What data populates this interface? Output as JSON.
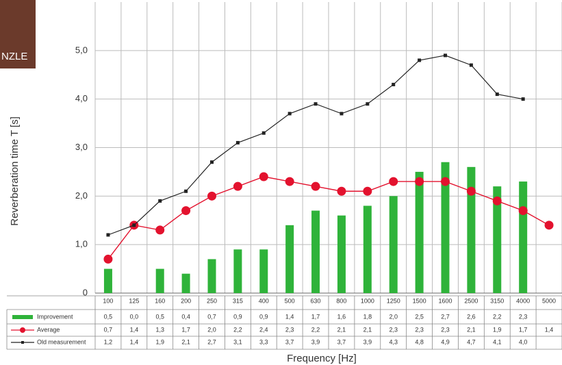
{
  "logo_text": "NZLE",
  "chart_data": {
    "type": "bar-line",
    "y_label": "Reverberation time T [s]",
    "x_label": "Frequency [Hz]",
    "categories": [
      "100",
      "125",
      "160",
      "200",
      "250",
      "315",
      "400",
      "500",
      "630",
      "800",
      "1000",
      "1250",
      "1500",
      "1600",
      "2500",
      "3150",
      "4000",
      "5000"
    ],
    "ylim": [
      0,
      6
    ],
    "yticks": [
      0,
      {
        "value": 1,
        "label": "1,0"
      },
      {
        "value": 2,
        "label": "2,0"
      },
      {
        "value": 3,
        "label": "3,0"
      },
      {
        "value": 4,
        "label": "4,0"
      },
      {
        "value": 5,
        "label": "5,0"
      }
    ],
    "grid": true,
    "series": [
      {
        "name": "Improvement",
        "kind": "bar",
        "color": "#2fb33a",
        "values": [
          0.5,
          0.0,
          0.5,
          0.4,
          0.7,
          0.9,
          0.9,
          1.4,
          1.7,
          1.6,
          1.8,
          2.0,
          2.5,
          2.7,
          2.6,
          2.2,
          2.3,
          null
        ],
        "value_labels": [
          "0,5",
          "0,0",
          "0,5",
          "0,4",
          "0,7",
          "0,9",
          "0,9",
          "1,4",
          "1,7",
          "1,6",
          "1,8",
          "2,0",
          "2,5",
          "2,7",
          "2,6",
          "2,2",
          "2,3",
          null
        ]
      },
      {
        "name": "Average",
        "kind": "line",
        "marker": "circle",
        "color": "#e3122e",
        "values": [
          0.7,
          1.4,
          1.3,
          1.7,
          2.0,
          2.2,
          2.4,
          2.3,
          2.2,
          2.1,
          2.1,
          2.3,
          2.3,
          2.3,
          2.1,
          1.9,
          1.7,
          1.4
        ],
        "value_labels": [
          "0,7",
          "1,4",
          "1,3",
          "1,7",
          "2,0",
          "2,2",
          "2,4",
          "2,3",
          "2,2",
          "2,1",
          "2,1",
          "2,3",
          "2,3",
          "2,3",
          "2,1",
          "1,9",
          "1,7",
          "1,4"
        ]
      },
      {
        "name": "Old measurement",
        "kind": "line",
        "marker": "square",
        "color": "#222222",
        "values": [
          1.2,
          1.4,
          1.9,
          2.1,
          2.7,
          3.1,
          3.3,
          3.7,
          3.9,
          3.7,
          3.9,
          4.3,
          4.8,
          4.9,
          4.7,
          4.1,
          4.0,
          null
        ],
        "value_labels": [
          "1,2",
          "1,4",
          "1,9",
          "2,1",
          "2,7",
          "3,1",
          "3,3",
          "3,7",
          "3,9",
          "3,7",
          "3,9",
          "4,3",
          "4,8",
          "4,9",
          "4,7",
          "4,1",
          "4,0",
          null
        ]
      }
    ]
  }
}
